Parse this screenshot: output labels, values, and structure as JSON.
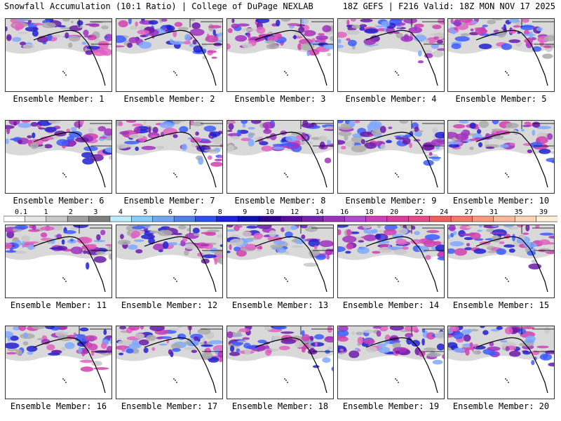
{
  "header": {
    "title": "Snowfall Accumulation (10:1 Ratio) | College of DuPage NEXLAB",
    "run_info": "18Z GEFS | F216 Valid: 18Z MON NOV 17 2025"
  },
  "member_label_prefix": "Ensemble Member: ",
  "members": [
    "1",
    "2",
    "3",
    "4",
    "5",
    "6",
    "7",
    "8",
    "9",
    "10",
    "11",
    "12",
    "13",
    "14",
    "15",
    "16",
    "17",
    "18",
    "19",
    "20"
  ],
  "legend": {
    "labels": [
      "0.1",
      "1",
      "2",
      "3",
      "4",
      "5",
      "6",
      "7",
      "8",
      "9",
      "10",
      "12",
      "14",
      "16",
      "18",
      "20",
      "22",
      "24",
      "27",
      "31",
      "35",
      "39"
    ],
    "colors": [
      "#ffffff",
      "#e6e6e6",
      "#c8c8c8",
      "#a0a0a0",
      "#808080",
      "#bfefff",
      "#87cefa",
      "#6fa8f0",
      "#4f7fe8",
      "#3050f0",
      "#2020e0",
      "#1010b0",
      "#300090",
      "#5a0ea0",
      "#7a22b0",
      "#9a34c0",
      "#b44ad0",
      "#cc3fb8",
      "#dc3c9c",
      "#e84a8a",
      "#f06060",
      "#f57a6a",
      "#f89a80",
      "#fbb89a",
      "#fdd4b8",
      "#ffeed8"
    ]
  }
}
